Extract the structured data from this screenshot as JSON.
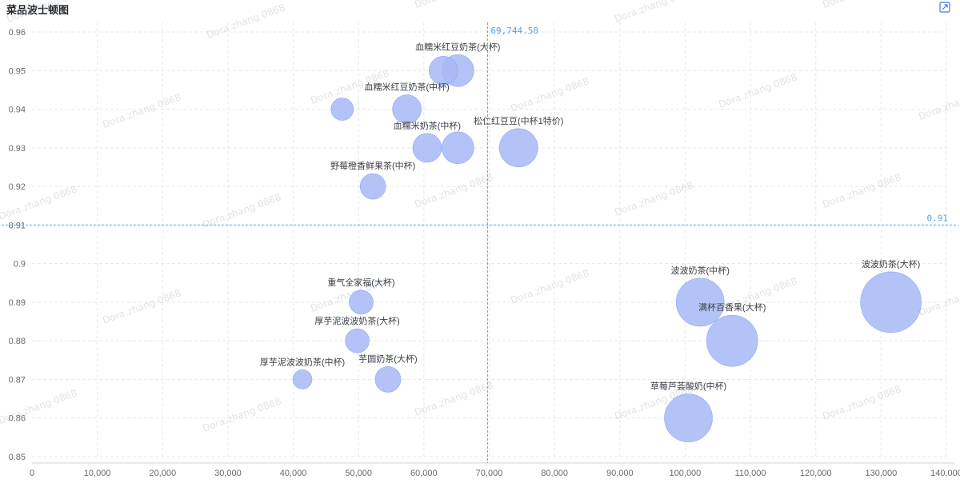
{
  "title": "菜品波士顿图",
  "icon": "expand-icon",
  "watermark": "Dora.zhang 0868",
  "colors": {
    "bubble": "#a7b9f6",
    "bubble_stroke": "#8fa6f2",
    "ref_line": "#5aa2e8",
    "grid": "#e6e8eb",
    "axis_text": "#646a73",
    "label_text": "#3a3f47"
  },
  "chart_data": {
    "type": "scatter",
    "title": "菜品波士顿图",
    "xlabel": "",
    "ylabel": "",
    "xlim": [
      0,
      140000
    ],
    "ylim": [
      0.85,
      0.96
    ],
    "x_ticks": [
      "0",
      "10,000",
      "20,000",
      "30,000",
      "40,000",
      "50,000",
      "60,000",
      "70,000",
      "80,000",
      "90,000",
      "100,000",
      "110,000",
      "120,000",
      "130,000",
      "140,000"
    ],
    "x_tick_values": [
      0,
      10000,
      20000,
      30000,
      40000,
      50000,
      60000,
      70000,
      80000,
      90000,
      100000,
      110000,
      120000,
      130000,
      140000
    ],
    "y_ticks": [
      "0.85",
      "0.86",
      "0.87",
      "0.88",
      "0.89",
      "0.9",
      "0.91",
      "0.92",
      "0.93",
      "0.94",
      "0.95",
      "0.96"
    ],
    "y_tick_values": [
      0.85,
      0.86,
      0.87,
      0.88,
      0.89,
      0.9,
      0.91,
      0.92,
      0.93,
      0.94,
      0.95,
      0.96
    ],
    "grid": true,
    "reference_lines": {
      "x": {
        "value": 69744.58,
        "label": "69,744.58"
      },
      "y": {
        "value": 0.91,
        "label": "0.91"
      }
    },
    "points": [
      {
        "label": "血糯米红豆奶茶(大杯)",
        "x": 65200,
        "y": 0.95,
        "size": 20
      },
      {
        "label": "",
        "x": 63000,
        "y": 0.95,
        "size": 18
      },
      {
        "label": "血糯米红豆奶茶(中杯)",
        "x": 57400,
        "y": 0.94,
        "size": 18
      },
      {
        "label": "",
        "x": 47500,
        "y": 0.94,
        "size": 14
      },
      {
        "label": "血糯米奶茶(中杯)",
        "x": 60500,
        "y": 0.93,
        "size": 18
      },
      {
        "label": "",
        "x": 65200,
        "y": 0.93,
        "size": 20
      },
      {
        "label": "松仁红豆豆(中杯1特价)",
        "x": 74500,
        "y": 0.93,
        "size": 24
      },
      {
        "label": "野莓橙香鲜果茶(中杯)",
        "x": 52200,
        "y": 0.92,
        "size": 16
      },
      {
        "label": "重气全家福(大杯)",
        "x": 50400,
        "y": 0.89,
        "size": 15
      },
      {
        "label": "厚芋泥波波奶茶(大杯)",
        "x": 49800,
        "y": 0.88,
        "size": 15
      },
      {
        "label": "厚芋泥波波奶茶(中杯)",
        "x": 41400,
        "y": 0.87,
        "size": 12
      },
      {
        "label": "芋圆奶茶(大杯)",
        "x": 54500,
        "y": 0.87,
        "size": 16
      },
      {
        "label": "波波奶茶(中杯)",
        "x": 102300,
        "y": 0.89,
        "size": 30
      },
      {
        "label": "波波奶茶(大杯)",
        "x": 131500,
        "y": 0.89,
        "size": 38
      },
      {
        "label": "满杯百香果(大杯)",
        "x": 107200,
        "y": 0.88,
        "size": 32
      },
      {
        "label": "草莓芦荟酸奶(中杯)",
        "x": 100500,
        "y": 0.86,
        "size": 30
      }
    ]
  }
}
